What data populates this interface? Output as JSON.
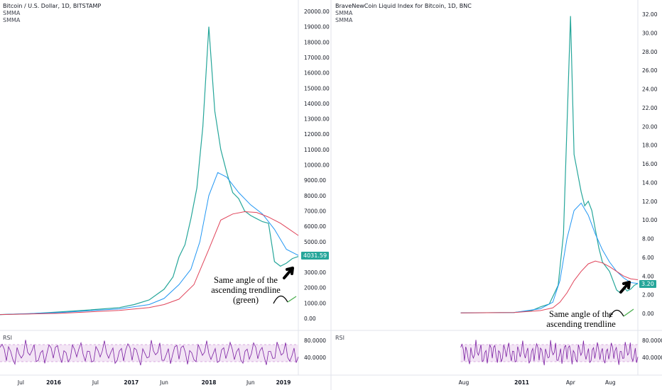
{
  "chart_data": [
    {
      "type": "line",
      "title": "Bitcoin / U.S. Dollar, 1D, BITSTAMP",
      "indicators": [
        "SMMA",
        "SMMA"
      ],
      "current_price": "4031.59",
      "y_ticks": [
        "20000.00",
        "19000.00",
        "18000.00",
        "17000.00",
        "16000.00",
        "15000.00",
        "14000.00",
        "13000.00",
        "12000.00",
        "11000.00",
        "10000.00",
        "9000.00",
        "8000.00",
        "7000.00",
        "6000.00",
        "5000.00",
        "4000.00",
        "3000.00",
        "2000.00",
        "1000.00",
        "0.00"
      ],
      "ylim": [
        0,
        20000
      ],
      "x_ticks": [
        "Jul",
        "2016",
        "Jul",
        "2017",
        "Jun",
        "2018",
        "Jun",
        "2019"
      ],
      "series": [
        {
          "color": "#26a69a",
          "x": [
            0,
            0.1,
            0.2,
            0.3,
            0.4,
            0.45,
            0.5,
            0.55,
            0.58,
            0.6,
            0.62,
            0.64,
            0.66,
            0.68,
            0.7,
            0.72,
            0.74,
            0.76,
            0.78,
            0.8,
            0.82,
            0.84,
            0.86,
            0.88,
            0.9,
            0.92,
            0.94,
            0.96,
            0.98,
            1.0
          ],
          "values": [
            250,
            300,
            420,
            550,
            700,
            900,
            1200,
            1900,
            2700,
            4000,
            4800,
            6500,
            8500,
            12500,
            19000,
            13500,
            11000,
            9500,
            8200,
            7800,
            7000,
            6700,
            6500,
            6300,
            6200,
            3700,
            3400,
            3600,
            3900,
            4031
          ]
        },
        {
          "color": "#2196f3",
          "x": [
            0,
            0.2,
            0.4,
            0.5,
            0.55,
            0.6,
            0.64,
            0.67,
            0.7,
            0.73,
            0.76,
            0.8,
            0.84,
            0.88,
            0.92,
            0.96,
            1.0
          ],
          "values": [
            250,
            380,
            620,
            900,
            1300,
            2200,
            3200,
            5000,
            8000,
            9500,
            9200,
            8200,
            7400,
            6800,
            5800,
            4500,
            4100
          ]
        },
        {
          "color": "#e0445a",
          "x": [
            0,
            0.2,
            0.4,
            0.5,
            0.55,
            0.6,
            0.65,
            0.7,
            0.74,
            0.78,
            0.82,
            0.86,
            0.9,
            0.94,
            0.97,
            1.0
          ],
          "values": [
            250,
            330,
            520,
            700,
            900,
            1250,
            2200,
            4500,
            6400,
            6800,
            6950,
            6900,
            6600,
            6200,
            5800,
            5400
          ]
        }
      ],
      "rsi": {
        "label": "RSI",
        "ticks": [
          "80.0000",
          "40.0000"
        ],
        "upper": 70,
        "lower": 30
      }
    },
    {
      "type": "line",
      "title": "BraveNewCoin Liquid Index for Bitcoin, 1D, BNC",
      "indicators": [
        "SMMA",
        "SMMA"
      ],
      "current_price": "3.20",
      "y_ticks": [
        "32.00",
        "30.00",
        "28.00",
        "26.00",
        "24.00",
        "22.00",
        "20.00",
        "18.00",
        "16.00",
        "14.00",
        "12.00",
        "10.00",
        "8.00",
        "6.00",
        "4.00",
        "2.00",
        "0.00"
      ],
      "ylim": [
        0,
        32
      ],
      "x_ticks": [
        "Aug",
        "2011",
        "Apr",
        "Aug"
      ],
      "series": [
        {
          "color": "#26a69a",
          "x": [
            0,
            0.3,
            0.4,
            0.45,
            0.5,
            0.55,
            0.58,
            0.6,
            0.62,
            0.64,
            0.66,
            0.68,
            0.7,
            0.72,
            0.74,
            0.76,
            0.78,
            0.8,
            0.82,
            0.84,
            0.86,
            0.88,
            0.9,
            0.92,
            0.94,
            0.96,
            0.98,
            1.0
          ],
          "values": [
            0.06,
            0.1,
            0.3,
            0.7,
            1.0,
            3.0,
            8.5,
            20,
            31.8,
            17,
            15,
            13,
            11.5,
            12,
            11,
            9,
            7,
            5.5,
            5,
            4.5,
            3.5,
            2.5,
            2.2,
            2.8,
            2.4,
            2.6,
            3.0,
            3.2
          ]
        },
        {
          "color": "#2196f3",
          "x": [
            0,
            0.3,
            0.45,
            0.52,
            0.56,
            0.6,
            0.64,
            0.68,
            0.72,
            0.76,
            0.8,
            0.84,
            0.88,
            0.92,
            0.96,
            1.0
          ],
          "values": [
            0.06,
            0.1,
            0.5,
            1.2,
            3.5,
            8.0,
            11.0,
            11.8,
            10.5,
            8.5,
            6.8,
            5.5,
            4.5,
            3.8,
            3.3,
            3.2
          ]
        },
        {
          "color": "#e0445a",
          "x": [
            0,
            0.3,
            0.45,
            0.52,
            0.56,
            0.6,
            0.64,
            0.68,
            0.72,
            0.76,
            0.8,
            0.84,
            0.88,
            0.92,
            0.96,
            1.0
          ],
          "values": [
            0.06,
            0.1,
            0.3,
            0.6,
            1.2,
            2.2,
            3.5,
            4.5,
            5.3,
            5.6,
            5.4,
            5.0,
            4.5,
            4.0,
            3.7,
            3.6
          ]
        }
      ],
      "rsi": {
        "label": "RSI",
        "ticks": [
          "80.0000",
          "40.0000"
        ],
        "upper": 70,
        "lower": 30
      }
    }
  ],
  "annotations": {
    "left": [
      "Same angle of the",
      "ascending trendline",
      "(green)"
    ],
    "right": [
      "Same angle of the",
      "ascending trendline"
    ]
  },
  "colors": {
    "price_tag": "#26a69a",
    "rsi_line": "#7b1fa2",
    "rsi_band": "#f3e5f5",
    "grid": "#f0f3fa"
  }
}
